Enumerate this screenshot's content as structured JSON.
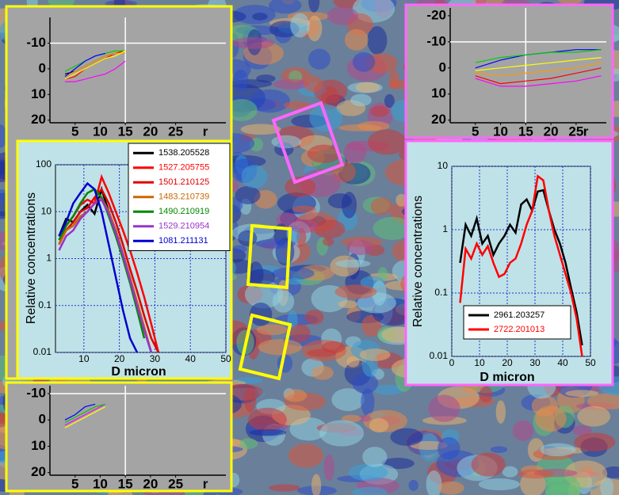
{
  "chart_data": [
    {
      "type": "line",
      "log_y": false,
      "xlim": [
        0,
        35
      ],
      "ylim": [
        21,
        -20
      ],
      "xticks": [
        5,
        10,
        15,
        20,
        25
      ],
      "yticks": [
        -10,
        0,
        10,
        20
      ],
      "xlabel": "r",
      "vline": 15,
      "hline": -10,
      "x": [
        3,
        5,
        7,
        9,
        11,
        13,
        15
      ],
      "series": [
        {
          "color": "#000000",
          "values": [
            2,
            1,
            -1,
            -3,
            -5,
            -6,
            -7
          ]
        },
        {
          "color": "#ff0000",
          "values": [
            4,
            3,
            0,
            -2,
            -4,
            -6,
            -7
          ]
        },
        {
          "color": "#ff00ff",
          "values": [
            5,
            5,
            4,
            3,
            2,
            0,
            -3
          ]
        },
        {
          "color": "#ff9900",
          "values": [
            3,
            1,
            -1,
            -3,
            -5,
            -6,
            -6
          ]
        },
        {
          "color": "#00cc00",
          "values": [
            1,
            -1,
            -3,
            -5,
            -6,
            -7,
            -7
          ]
        },
        {
          "color": "#ffff00",
          "values": [
            4,
            2,
            0,
            -2,
            -4,
            -5,
            -7
          ]
        },
        {
          "color": "#0000ff",
          "values": [
            3,
            0,
            -3,
            -5,
            -6,
            null,
            null
          ]
        }
      ]
    },
    {
      "type": "line",
      "log_y": false,
      "xlim": [
        0,
        31
      ],
      "ylim": [
        21,
        -23
      ],
      "xticks": [
        5,
        10,
        15,
        20,
        25
      ],
      "yticks": [
        -20,
        -10,
        0,
        10,
        20
      ],
      "xlabel": "r",
      "vline": 15,
      "hline": -10,
      "x": [
        5,
        10,
        15,
        20,
        25,
        30
      ],
      "series": [
        {
          "color": "#ff0000",
          "values": [
            3,
            6,
            5,
            4,
            2,
            0
          ]
        },
        {
          "color": "#ff00ff",
          "values": [
            4,
            7,
            7,
            6,
            5,
            3
          ]
        },
        {
          "color": "#0000ff",
          "values": [
            0,
            -3,
            -5,
            -6,
            -7,
            -7
          ]
        },
        {
          "color": "#00cc00",
          "values": [
            -2,
            -4,
            -5,
            -6,
            -6,
            -7
          ]
        },
        {
          "color": "#ffff00",
          "values": [
            1,
            0,
            -1,
            -2,
            -3,
            -4
          ]
        },
        {
          "color": "#ff9900",
          "values": [
            2,
            3,
            2,
            1,
            0,
            -2
          ]
        }
      ]
    },
    {
      "type": "line",
      "log_y": false,
      "xlim": [
        0,
        35
      ],
      "ylim": [
        21,
        -13
      ],
      "xticks": [
        5,
        10,
        15,
        20,
        25
      ],
      "yticks": [
        -10,
        0,
        10,
        20
      ],
      "xlabel": "r",
      "vline": 15,
      "hline": -10,
      "x": [
        3,
        5,
        7,
        9,
        11
      ],
      "series": [
        {
          "color": "#0000ff",
          "values": [
            0,
            -2,
            -5,
            -6,
            null
          ]
        },
        {
          "color": "#ff00ff",
          "values": [
            2,
            0,
            -2,
            -4,
            -6
          ]
        },
        {
          "color": "#00cc00",
          "values": [
            1,
            -1,
            -3,
            -5,
            -6
          ]
        },
        {
          "color": "#ffff00",
          "values": [
            3,
            1,
            -1,
            -3,
            -5
          ]
        }
      ]
    },
    {
      "type": "line",
      "log_y": true,
      "grid": true,
      "xlim": [
        2,
        50
      ],
      "ylim": [
        0.01,
        100
      ],
      "xticks": [
        10,
        20,
        30,
        40,
        50
      ],
      "yticks": [
        0.01,
        0.1,
        1,
        10,
        100
      ],
      "xlabel": "D micron",
      "ylabel": "Relative concentrations",
      "x": [
        3,
        5,
        7,
        9,
        11,
        13,
        15,
        17,
        19,
        21,
        23,
        25,
        27,
        29,
        31
      ],
      "series": [
        {
          "name": "1538.205528",
          "color": "#000000",
          "values": [
            3,
            7,
            6,
            10,
            14,
            9,
            30,
            10,
            4,
            1.2,
            0.35,
            0.1,
            0.03,
            0.01,
            null
          ]
        },
        {
          "name": "1527.205755",
          "color": "#ff0000",
          "values": [
            2,
            5,
            8,
            14,
            18,
            15,
            55,
            25,
            10,
            4,
            1.5,
            0.5,
            0.15,
            0.04,
            0.01
          ]
        },
        {
          "name": "1501.210125",
          "color": "#e00000",
          "values": [
            2,
            4,
            6,
            10,
            12,
            20,
            30,
            15,
            6,
            2,
            0.6,
            0.2,
            0.06,
            0.02,
            0.01
          ]
        },
        {
          "name": "1483.210739",
          "color": "#cc6600",
          "values": [
            2,
            4,
            5,
            8,
            10,
            15,
            20,
            10,
            4,
            1.3,
            0.4,
            0.12,
            0.035,
            0.01,
            null
          ]
        },
        {
          "name": "1490.210919",
          "color": "#008800",
          "values": [
            2.5,
            5,
            8,
            15,
            25,
            30,
            20,
            8,
            3,
            1,
            0.3,
            0.08,
            0.02,
            null,
            null
          ]
        },
        {
          "name": "1529.210954",
          "color": "#9933cc",
          "values": [
            1.5,
            3,
            4,
            7,
            10,
            15,
            18,
            9,
            3.5,
            1.2,
            0.35,
            0.1,
            0.03,
            0.01,
            null
          ]
        },
        {
          "name": "1081.211131",
          "color": "#0000cc",
          "values": [
            3,
            6,
            15,
            25,
            40,
            30,
            10,
            2,
            0.4,
            0.08,
            0.02,
            0.01,
            null,
            null,
            null
          ]
        }
      ]
    },
    {
      "type": "line",
      "log_y": true,
      "grid": true,
      "xlim": [
        0,
        50
      ],
      "ylim": [
        0.01,
        10
      ],
      "xticks": [
        0,
        10,
        20,
        30,
        40,
        50
      ],
      "yticks": [
        0.01,
        0.1,
        1,
        10
      ],
      "xlabel": "D micron",
      "ylabel": "Relative concentrations",
      "x": [
        3,
        5,
        7,
        9,
        11,
        13,
        15,
        17,
        19,
        21,
        23,
        25,
        27,
        29,
        31,
        33,
        35,
        37,
        39,
        41,
        43,
        45,
        47
      ],
      "series": [
        {
          "name": "2961.203257",
          "color": "#000000",
          "values": [
            0.3,
            1.2,
            0.8,
            1.5,
            0.6,
            0.8,
            0.4,
            0.6,
            0.8,
            1.2,
            0.9,
            2.5,
            3,
            2,
            4,
            4.2,
            2,
            1,
            0.6,
            0.3,
            0.12,
            0.05,
            0.015
          ]
        },
        {
          "name": "2722.201013",
          "color": "#ff0000",
          "values": [
            0.07,
            0.5,
            0.35,
            0.6,
            0.4,
            0.55,
            0.3,
            0.18,
            0.2,
            0.3,
            0.35,
            0.6,
            1.2,
            2,
            7,
            6,
            2,
            0.8,
            0.4,
            0.2,
            0.1,
            0.04,
            0.01
          ]
        }
      ]
    }
  ]
}
